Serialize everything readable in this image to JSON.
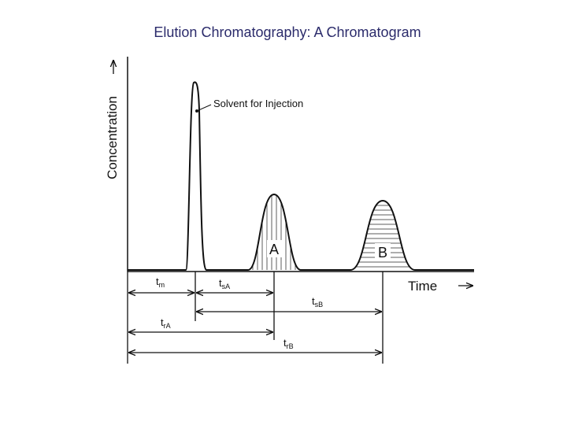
{
  "title": "Elution Chromatography: A Chromatogram",
  "axes": {
    "y_label": "Concentration",
    "x_label": "Time"
  },
  "annotation": "Solvent for Injection",
  "peaks": [
    {
      "label": "A"
    },
    {
      "label": "B"
    }
  ],
  "intervals": [
    {
      "base": "t",
      "sub": "m"
    },
    {
      "base": "t",
      "sub": "sA"
    },
    {
      "base": "t",
      "sub": "sB"
    },
    {
      "base": "t",
      "sub": "rA"
    },
    {
      "base": "t",
      "sub": "rB"
    }
  ]
}
